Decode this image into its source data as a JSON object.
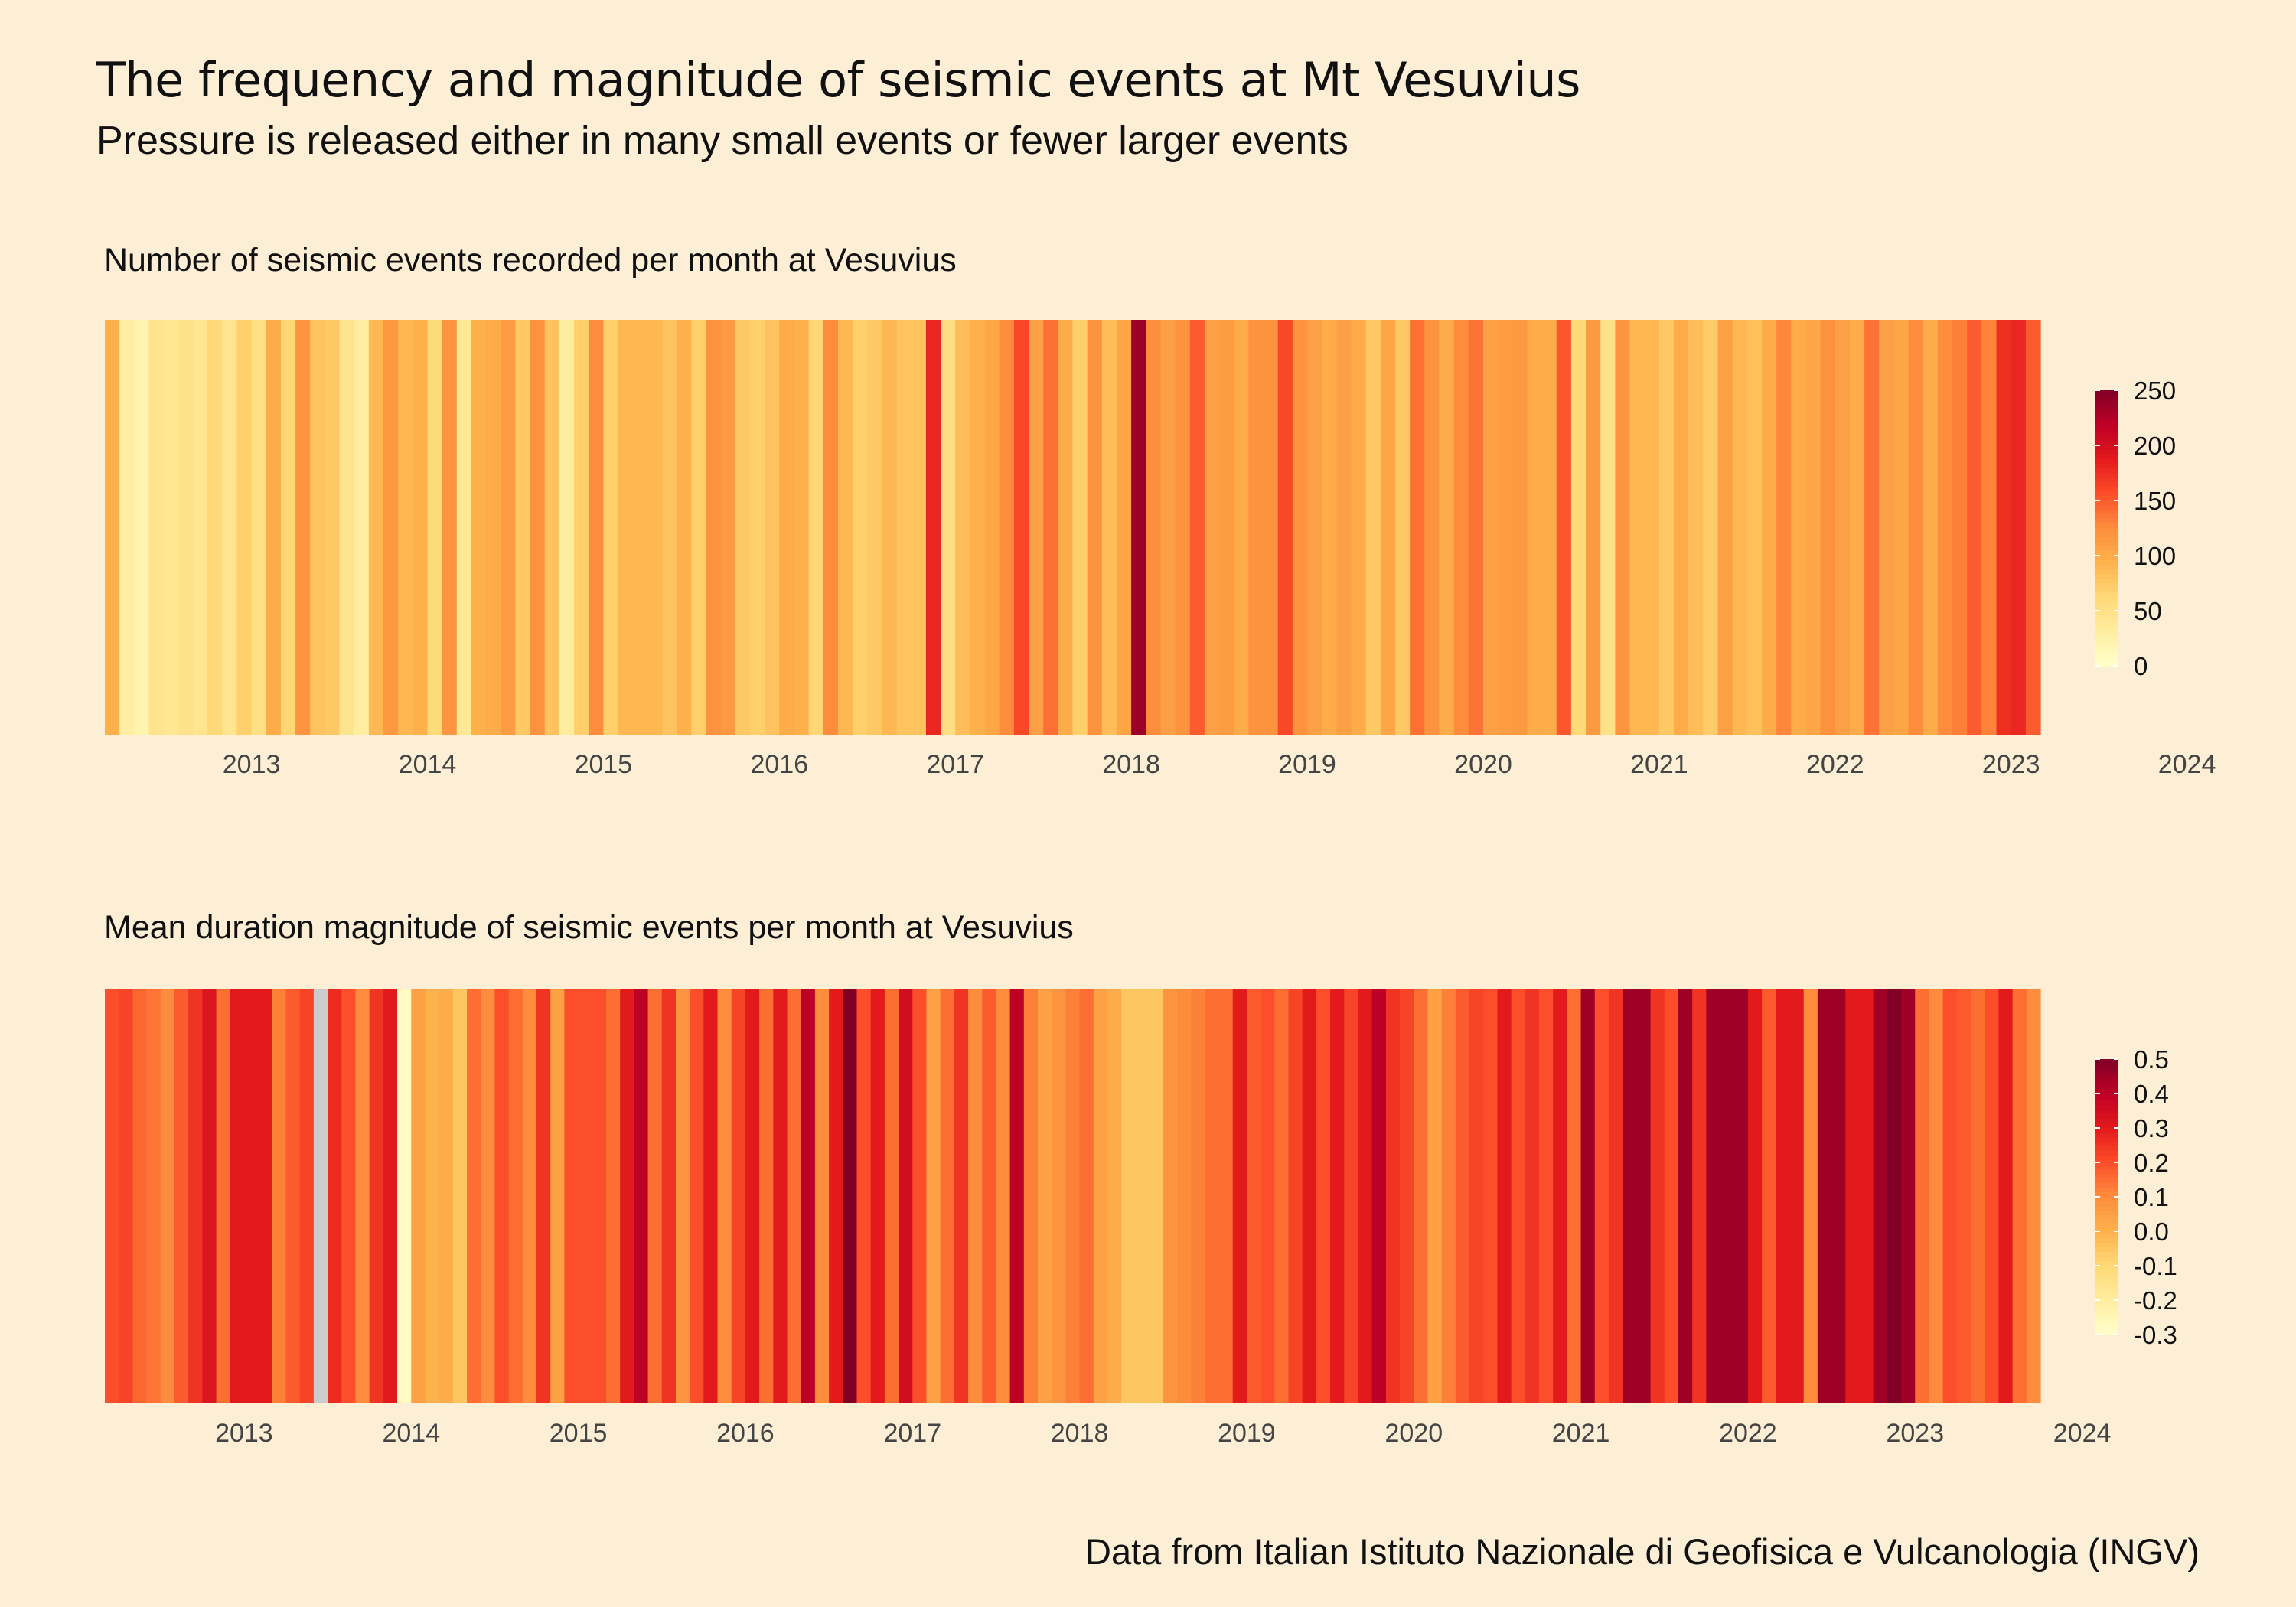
{
  "title": "The frequency and magnitude of seismic events at Mt Vesuvius",
  "subtitle": "Pressure is released either in many small events or fewer larger events",
  "caption": "Data from Italian Istituto Nazionale di Geofisica e Vulcanologia (INGV)",
  "chart_data": [
    {
      "type": "heatmap",
      "title": "Number of seismic events recorded per month at Vesuvius",
      "x_start": "2012-09",
      "x_tick_labels": [
        "2013",
        "2014",
        "2015",
        "2016",
        "2017",
        "2018",
        "2019",
        "2020",
        "2021",
        "2022",
        "2023",
        "2024"
      ],
      "legend_breaks": [
        "0",
        "50",
        "100",
        "150",
        "200",
        "250"
      ],
      "scale_min": 0,
      "scale_max": 250,
      "palette": [
        "#ffffcc",
        "#ffeda0",
        "#fed976",
        "#feb24c",
        "#fd8d3c",
        "#fc4e2a",
        "#e31a1c",
        "#bd0026",
        "#800026"
      ],
      "missing_color": "#cccccc",
      "values": [
        95,
        30,
        20,
        45,
        40,
        48,
        44,
        62,
        44,
        70,
        52,
        100,
        65,
        118,
        80,
        75,
        45,
        30,
        88,
        115,
        90,
        95,
        60,
        118,
        38,
        95,
        100,
        112,
        75,
        120,
        80,
        32,
        70,
        125,
        70,
        90,
        90,
        90,
        80,
        95,
        70,
        120,
        115,
        75,
        70,
        80,
        100,
        95,
        65,
        125,
        90,
        70,
        75,
        90,
        80,
        80,
        180,
        55,
        85,
        95,
        105,
        125,
        160,
        110,
        140,
        100,
        70,
        120,
        85,
        105,
        235,
        125,
        110,
        120,
        150,
        110,
        112,
        100,
        120,
        120,
        160,
        120,
        110,
        100,
        110,
        100,
        75,
        105,
        75,
        140,
        120,
        100,
        125,
        138,
        110,
        112,
        115,
        100,
        100,
        152,
        60,
        115,
        48,
        118,
        90,
        90,
        75,
        100,
        85,
        72,
        110,
        90,
        82,
        100,
        128,
        100,
        105,
        122,
        110,
        100,
        138,
        110,
        105,
        125,
        100,
        125,
        132,
        150,
        130,
        175,
        180,
        150
      ],
      "legend_position": "right"
    },
    {
      "type": "heatmap",
      "title": "Mean duration magnitude of seismic events per month at Vesuvius",
      "x_start": "2012-09",
      "x_tick_labels": [
        "2013",
        "2014",
        "2015",
        "2016",
        "2017",
        "2018",
        "2019",
        "2020",
        "2021",
        "2022",
        "2023",
        "2024"
      ],
      "legend_breaks": [
        "0.5",
        "0.4",
        "0.3",
        "0.2",
        "0.1",
        "0.0",
        "-0.1",
        "-0.2",
        "-0.3"
      ],
      "scale_min": -0.3,
      "scale_max": 0.5,
      "palette": [
        "#ffffcc",
        "#ffeda0",
        "#fed976",
        "#feb24c",
        "#fd8d3c",
        "#fc4e2a",
        "#e31a1c",
        "#bd0026",
        "#800026"
      ],
      "missing_color": "#cccccc",
      "values": [
        0.2,
        0.22,
        0.16,
        0.14,
        0.1,
        0.18,
        0.25,
        0.32,
        0.15,
        0.3,
        0.3,
        0.3,
        0.12,
        0.18,
        0.22,
        null,
        0.27,
        0.2,
        0.1,
        0.25,
        0.3,
        -0.28,
        0.05,
        0.0,
        0.02,
        -0.05,
        0.15,
        0.1,
        0.2,
        0.15,
        0.1,
        0.25,
        0.05,
        0.2,
        0.2,
        0.2,
        0.15,
        0.3,
        0.4,
        0.15,
        0.25,
        0.08,
        0.2,
        0.3,
        0.1,
        0.22,
        0.3,
        0.15,
        0.3,
        0.15,
        0.4,
        0.1,
        0.3,
        0.5,
        0.2,
        0.3,
        0.15,
        0.35,
        0.2,
        0.05,
        0.15,
        0.25,
        0.1,
        0.18,
        0.1,
        0.4,
        0.12,
        0.05,
        0.08,
        0.12,
        0.15,
        0.05,
        0.02,
        -0.05,
        -0.05,
        -0.05,
        0.08,
        0.1,
        0.12,
        0.15,
        0.15,
        0.3,
        0.18,
        0.2,
        0.15,
        0.22,
        0.3,
        0.2,
        0.3,
        0.22,
        0.3,
        0.4,
        0.25,
        0.22,
        0.15,
        0.05,
        0.12,
        0.18,
        0.22,
        0.2,
        0.3,
        0.2,
        0.25,
        0.2,
        0.3,
        0.15,
        0.45,
        0.2,
        0.25,
        0.45,
        0.45,
        0.25,
        0.2,
        0.45,
        0.25,
        0.45,
        0.45,
        0.45,
        0.3,
        0.18,
        0.3,
        0.3,
        0.1,
        0.45,
        0.45,
        0.3,
        0.3,
        0.45,
        0.5,
        0.45,
        0.15,
        0.1,
        0.2,
        0.18,
        0.15,
        0.2,
        0.3,
        0.15,
        0.1
      ],
      "legend_position": "right"
    }
  ]
}
